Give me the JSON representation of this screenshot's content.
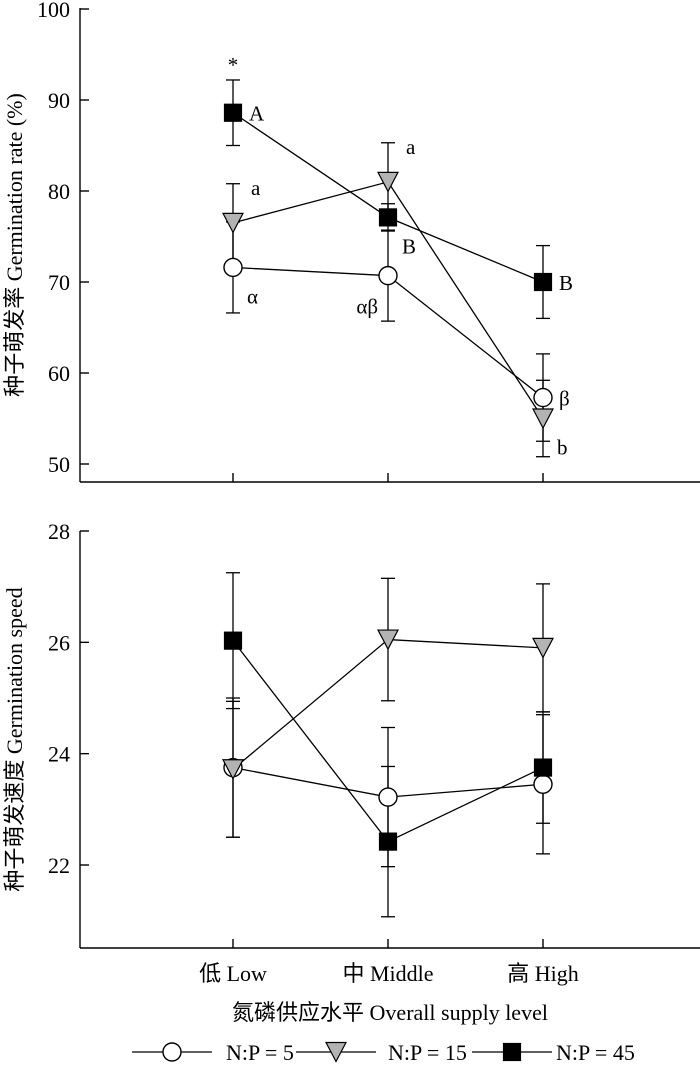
{
  "chart_data": [
    {
      "type": "line",
      "panel": "top",
      "ylabel": "种子萌发率 Germination rate (%)",
      "ylim": [
        50,
        100
      ],
      "yticks": [
        50,
        60,
        70,
        80,
        90,
        100
      ],
      "categories": [
        "低 Low",
        "中 Middle",
        "高 High"
      ],
      "series": [
        {
          "name": "N:P = 5",
          "marker": "circle",
          "values": [
            71.6,
            70.7,
            57.3
          ],
          "errors": [
            5.0,
            5.0,
            4.8
          ]
        },
        {
          "name": "N:P = 15",
          "marker": "triangle",
          "values": [
            76.5,
            81.0,
            55.0
          ],
          "errors": [
            4.3,
            4.3,
            4.2
          ]
        },
        {
          "name": "N:P = 45",
          "marker": "square",
          "values": [
            88.6,
            77.1,
            70.0
          ],
          "errors": [
            3.6,
            1.5,
            4.0
          ]
        }
      ],
      "annotations": [
        {
          "text": "*",
          "series": "N:P = 45",
          "category": 0,
          "position": "above"
        },
        {
          "text": "A",
          "series": "N:P = 45",
          "category": 0,
          "position": "right"
        },
        {
          "text": "B",
          "series": "N:P = 45",
          "category": 1,
          "position": "below-right"
        },
        {
          "text": "B",
          "series": "N:P = 45",
          "category": 2,
          "position": "right"
        },
        {
          "text": "a",
          "series": "N:P = 15",
          "category": 0,
          "position": "above-right"
        },
        {
          "text": "a",
          "series": "N:P = 15",
          "category": 1,
          "position": "above-right"
        },
        {
          "text": "b",
          "series": "N:P = 15",
          "category": 2,
          "position": "below-right"
        },
        {
          "text": "α",
          "series": "N:P = 5",
          "category": 0,
          "position": "below-right"
        },
        {
          "text": "αβ",
          "series": "N:P = 5",
          "category": 1,
          "position": "below-left"
        },
        {
          "text": "β",
          "series": "N:P = 5",
          "category": 2,
          "position": "right"
        }
      ]
    },
    {
      "type": "line",
      "panel": "bottom",
      "ylabel": "种子萌发速度 Germination speed",
      "xlabel": "氮磷供应水平 Overall supply level",
      "ylim": [
        20.5,
        28
      ],
      "yticks": [
        22,
        24,
        26,
        28
      ],
      "categories": [
        "低 Low",
        "中 Middle",
        "高 High"
      ],
      "series": [
        {
          "name": "N:P = 5",
          "marker": "circle",
          "values": [
            23.75,
            23.22,
            23.45
          ],
          "errors": [
            1.25,
            1.25,
            1.25
          ]
        },
        {
          "name": "N:P = 15",
          "marker": "triangle",
          "values": [
            23.72,
            26.05,
            25.9
          ],
          "errors": [
            1.22,
            1.1,
            1.15
          ]
        },
        {
          "name": "N:P = 45",
          "marker": "square",
          "values": [
            26.03,
            22.42,
            23.75
          ],
          "errors": [
            1.22,
            1.35,
            1.0
          ]
        }
      ]
    }
  ],
  "legend": [
    {
      "label": "N:P = 5",
      "marker": "circle"
    },
    {
      "label": "N:P = 15",
      "marker": "triangle"
    },
    {
      "label": "N:P = 45",
      "marker": "square"
    }
  ],
  "colors": {
    "circle_fill": "#ffffff",
    "triangle_fill": "#b3b3b3",
    "square_fill": "#000000",
    "stroke": "#000000"
  }
}
